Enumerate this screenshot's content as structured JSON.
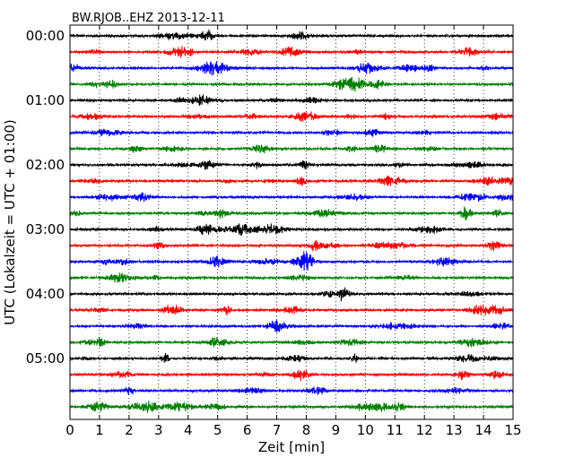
{
  "chart_data": {
    "type": "line",
    "title": "BW.RJOB..EHZ 2013-12-11",
    "xlabel": "Zeit  [min]",
    "ylabel": "UTC (Lokalzeit = UTC + 01:00)",
    "xlim": [
      0,
      15
    ],
    "x_ticks": [
      "0",
      "1",
      "2",
      "3",
      "4",
      "5",
      "6",
      "7",
      "8",
      "9",
      "10",
      "11",
      "12",
      "13",
      "14",
      "15"
    ],
    "y_ticks": [
      "00:00",
      "01:00",
      "02:00",
      "03:00",
      "04:00",
      "05:00"
    ],
    "grid": "vertical-dotted",
    "trace_count": 24,
    "trace_colors": [
      "#000000",
      "#ff0000",
      "#0000ff",
      "#008000"
    ]
  }
}
